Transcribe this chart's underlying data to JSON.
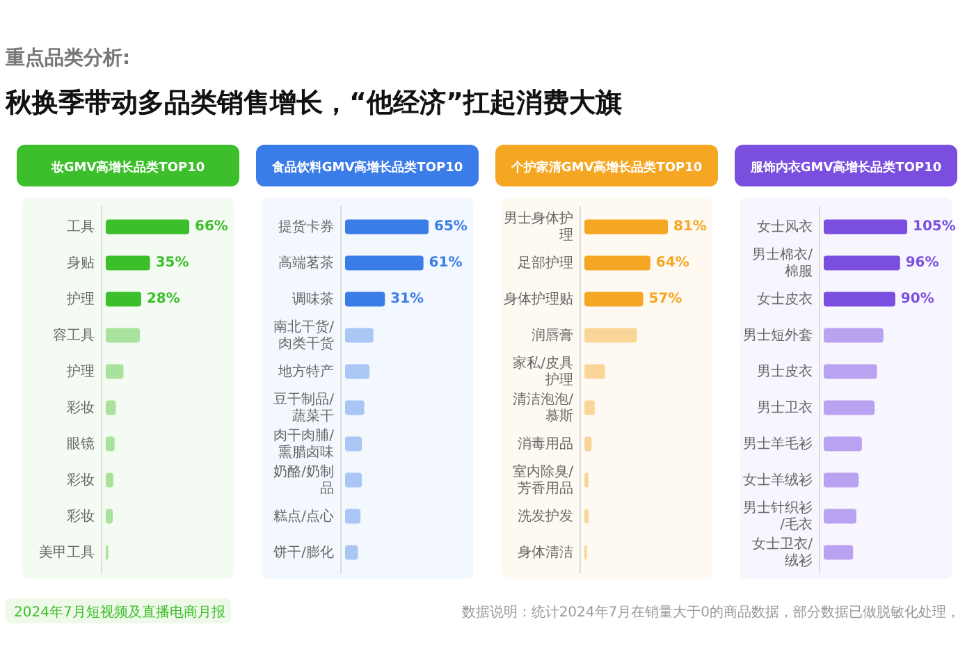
{
  "chart_data": [
    {
      "type": "bar",
      "orientation": "horizontal",
      "title": "妆GMV高增长品类TOP10",
      "categories": [
        "工具",
        "身贴",
        "护理",
        "容工具",
        "护理",
        "彩妆",
        "眼镜",
        "彩妆",
        "彩妆",
        "美甲工具"
      ],
      "values": [
        66,
        35,
        28,
        27,
        14,
        8,
        7,
        6,
        5.5,
        2
      ],
      "value_labels": [
        "66%",
        "35%",
        "28%",
        null,
        null,
        null,
        null,
        null,
        null,
        null
      ],
      "colors": [
        "#3cbf2a",
        "#3cbf2a",
        "#3cbf2a",
        "#a9e29c",
        "#a9e29c",
        "#a9e29c",
        "#a9e29c",
        "#a9e29c",
        "#a9e29c",
        "#a9e29c"
      ],
      "annotations": [
        "重点品类分析:",
        "秋换季带动多品类销售增长，“他经济”扛起消费大旗",
        "2024年7月短视频及直播电商月报"
      ]
    },
    {
      "type": "bar",
      "orientation": "horizontal",
      "title": "食品饮料GMV高增长品类TOP10",
      "categories": [
        "提货卡券",
        "高端茗茶",
        "调味茶",
        "南北干货/肉类干货",
        "地方特产",
        "豆干制品/蔬菜干",
        "肉干肉脯/熏腊卤味",
        "奶酪/奶制品",
        "糕点/点心",
        "饼干/膨化"
      ],
      "values": [
        65,
        61,
        31,
        22,
        19,
        15,
        13,
        13,
        12,
        10
      ],
      "value_labels": [
        "65%",
        "61%",
        "31%",
        null,
        null,
        null,
        null,
        null,
        null,
        null
      ],
      "colors": [
        "#3b7de8",
        "#3b7de8",
        "#3b7de8",
        "#a9c6f5",
        "#a9c6f5",
        "#a9c6f5",
        "#a9c6f5",
        "#a9c6f5",
        "#a9c6f5",
        "#a9c6f5"
      ]
    },
    {
      "type": "bar",
      "orientation": "horizontal",
      "title": "个护家清GMV高增长品类TOP10",
      "categories": [
        "男士身体护理",
        "足部护理",
        "身体护理贴",
        "润唇膏",
        "家私/皮具护理",
        "清洁泡泡/慕斯",
        "消毒用品",
        "室内除臭/芳香用品",
        "洗发护发",
        "身体清洁"
      ],
      "values": [
        81,
        64,
        57,
        51,
        20,
        10,
        7,
        4,
        4,
        2.5
      ],
      "value_labels": [
        "81%",
        "64%",
        "57%",
        null,
        null,
        null,
        null,
        null,
        null,
        null
      ],
      "colors": [
        "#f5a623",
        "#f5a623",
        "#f5a623",
        "#f9d598",
        "#f9d598",
        "#f9d598",
        "#f9d598",
        "#f9d598",
        "#f9d598",
        "#f9d598"
      ]
    },
    {
      "type": "bar",
      "orientation": "horizontal",
      "title": "服饰内衣GMV高增长品类TOP10",
      "categories": [
        "女士风衣",
        "男士棉衣/棉服",
        "女士皮衣",
        "男士短外套",
        "男士皮衣",
        "男士卫衣",
        "男士羊毛衫",
        "女士羊绒衫",
        "男士针织衫/毛衣",
        "女士卫衣/绒衫"
      ],
      "values": [
        105,
        96,
        90,
        75,
        67,
        64,
        48,
        44,
        41,
        37
      ],
      "value_labels": [
        "105%",
        "96%",
        "90%",
        null,
        null,
        null,
        null,
        null,
        null,
        null
      ],
      "colors": [
        "#7a4fe0",
        "#7a4fe0",
        "#7a4fe0",
        "#b9a3f0",
        "#b9a3f0",
        "#b9a3f0",
        "#b9a3f0",
        "#b9a3f0",
        "#b9a3f0",
        "#b9a3f0"
      ],
      "annotations": [
        "数据说明：统计2024年7月在销量大于0的商品数据，部分数据已做脱敏化处理，"
      ]
    }
  ]
}
